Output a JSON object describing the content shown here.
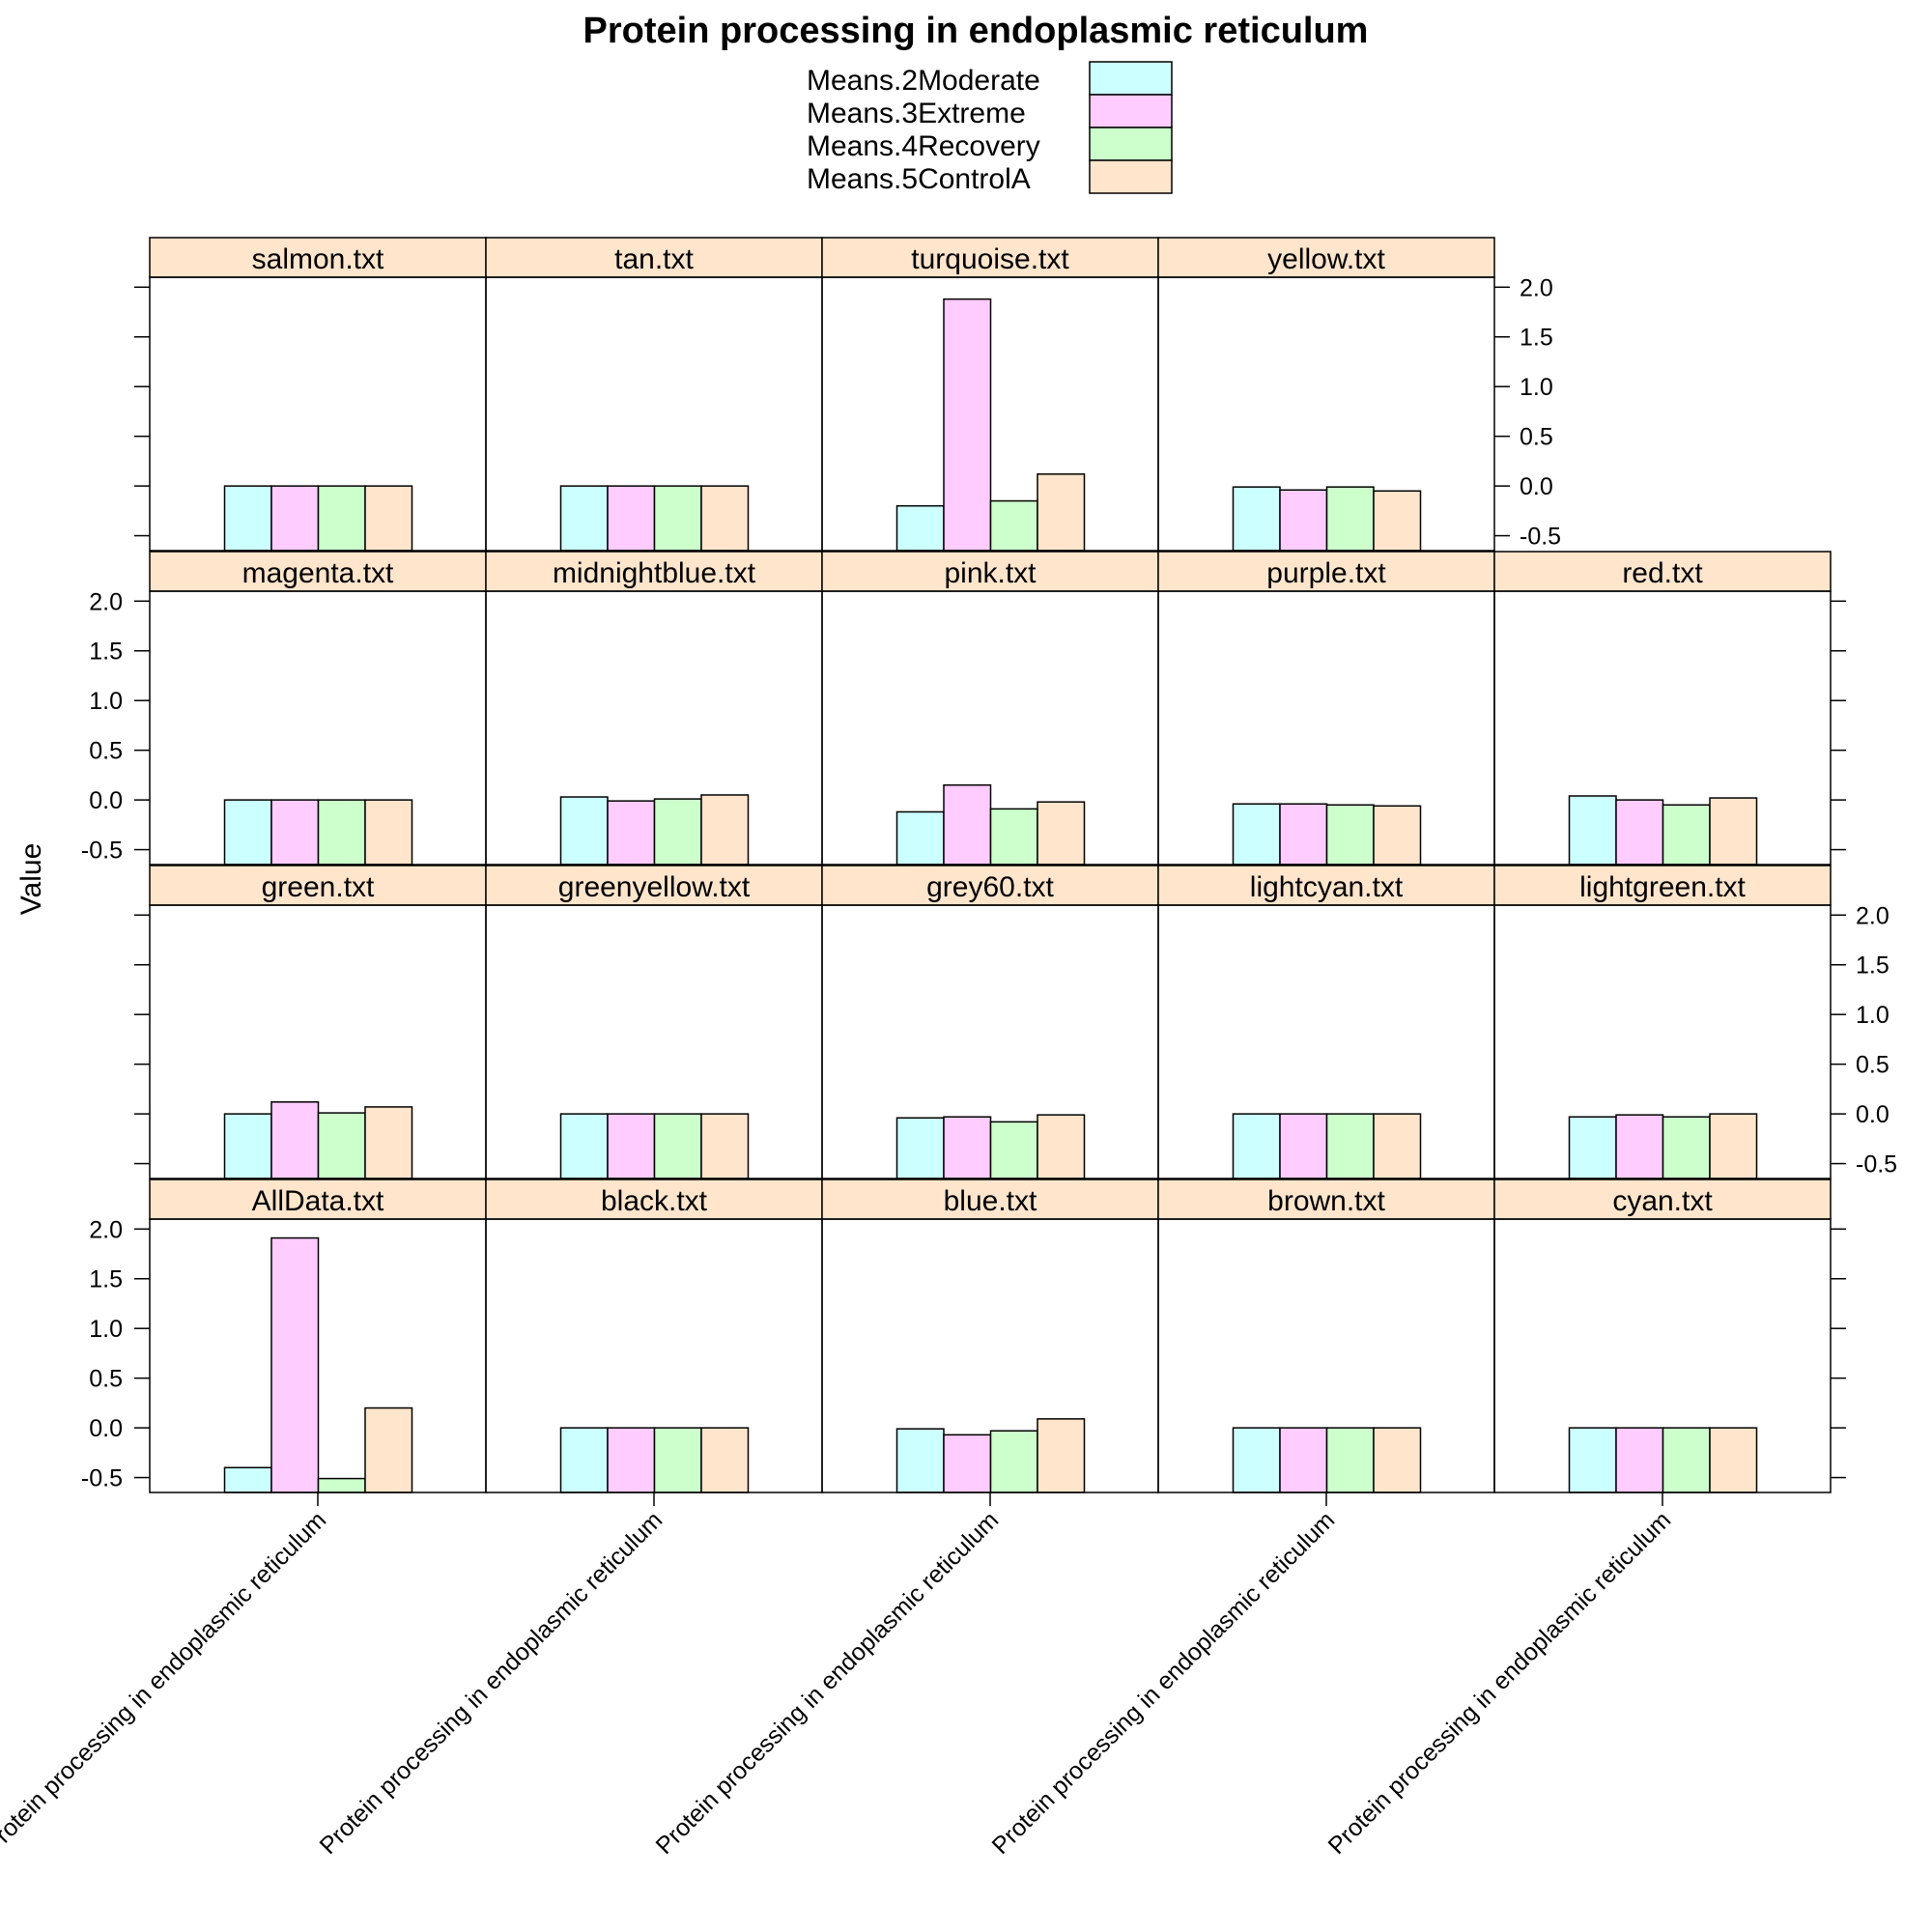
{
  "chart_data": {
    "type": "bar",
    "title": "Protein processing in endoplasmic reticulum",
    "ylabel": "Value",
    "category": "Protein processing in endoplasmic reticulum",
    "ylim": [
      -0.65,
      2.1
    ],
    "yticks": [
      -0.5,
      0.0,
      0.5,
      1.0,
      1.5,
      2.0
    ],
    "ytick_labels": [
      "-0.5",
      "0.0",
      "0.5",
      "1.0",
      "1.5",
      "2.0"
    ],
    "legend_position": "top-center",
    "series": [
      {
        "name": "Means.2Moderate",
        "color": "#ccffff"
      },
      {
        "name": "Means.3Extreme",
        "color": "#ffccff"
      },
      {
        "name": "Means.4Recovery",
        "color": "#ccffcc"
      },
      {
        "name": "Means.5ControlA",
        "color": "#ffe5cc"
      }
    ],
    "strip_color": "#ffe5cc",
    "rows": [
      [
        {
          "name": "salmon.txt",
          "values": [
            0.0,
            0.0,
            0.0,
            0.0
          ]
        },
        {
          "name": "tan.txt",
          "values": [
            0.0,
            0.0,
            0.0,
            0.0
          ]
        },
        {
          "name": "turquoise.txt",
          "values": [
            -0.2,
            1.88,
            -0.15,
            0.12
          ]
        },
        {
          "name": "yellow.txt",
          "values": [
            -0.01,
            -0.04,
            -0.01,
            -0.05
          ]
        }
      ],
      [
        {
          "name": "magenta.txt",
          "values": [
            0.0,
            0.0,
            0.0,
            0.0
          ]
        },
        {
          "name": "midnightblue.txt",
          "values": [
            0.03,
            -0.01,
            0.01,
            0.05
          ]
        },
        {
          "name": "pink.txt",
          "values": [
            -0.12,
            0.15,
            -0.09,
            -0.02
          ]
        },
        {
          "name": "purple.txt",
          "values": [
            -0.04,
            -0.04,
            -0.05,
            -0.06
          ]
        },
        {
          "name": "red.txt",
          "values": [
            0.04,
            0.0,
            -0.05,
            0.02
          ]
        }
      ],
      [
        {
          "name": "green.txt",
          "values": [
            0.0,
            0.12,
            0.01,
            0.07
          ]
        },
        {
          "name": "greenyellow.txt",
          "values": [
            0.0,
            0.0,
            0.0,
            0.0
          ]
        },
        {
          "name": "grey60.txt",
          "values": [
            -0.04,
            -0.03,
            -0.08,
            -0.01
          ]
        },
        {
          "name": "lightcyan.txt",
          "values": [
            0.0,
            0.0,
            0.0,
            0.0
          ]
        },
        {
          "name": "lightgreen.txt",
          "values": [
            -0.03,
            -0.01,
            -0.03,
            0.0
          ]
        }
      ],
      [
        {
          "name": "AllData.txt",
          "values": [
            -0.4,
            1.91,
            -0.51,
            0.2
          ]
        },
        {
          "name": "black.txt",
          "values": [
            0.0,
            0.0,
            0.0,
            0.0
          ]
        },
        {
          "name": "blue.txt",
          "values": [
            -0.01,
            -0.07,
            -0.03,
            0.09
          ]
        },
        {
          "name": "brown.txt",
          "values": [
            0.0,
            0.0,
            0.0,
            0.0
          ]
        },
        {
          "name": "cyan.txt",
          "values": [
            0.0,
            0.0,
            0.0,
            0.0
          ]
        }
      ]
    ]
  }
}
